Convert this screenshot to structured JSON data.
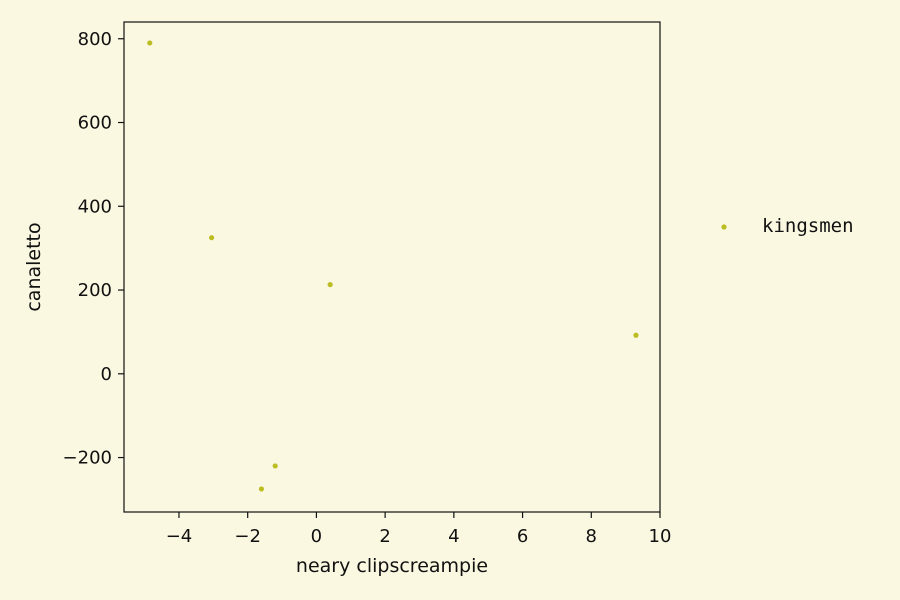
{
  "chart_data": {
    "type": "scatter",
    "title": "",
    "xlabel": "neary clipscreampie",
    "ylabel": "canaletto",
    "xlim": [
      -5.6,
      10.0
    ],
    "ylim": [
      -330,
      840
    ],
    "xticks": [
      -4,
      -2,
      0,
      2,
      4,
      6,
      8,
      10
    ],
    "xtick_labels": [
      "−4",
      "−2",
      "0",
      "2",
      "4",
      "6",
      "8",
      "10"
    ],
    "yticks": [
      -200,
      0,
      200,
      400,
      600,
      800
    ],
    "ytick_labels": [
      "−200",
      "0",
      "200",
      "400",
      "600",
      "800"
    ],
    "grid": false,
    "legend_position": "outside-right",
    "series": [
      {
        "name": "kingsmen",
        "color": "#bcbd22",
        "points": [
          {
            "x": -4.85,
            "y": 790
          },
          {
            "x": -3.05,
            "y": 325
          },
          {
            "x": 0.4,
            "y": 213
          },
          {
            "x": 9.3,
            "y": 92
          },
          {
            "x": -1.2,
            "y": -220
          },
          {
            "x": -1.6,
            "y": -275
          }
        ]
      }
    ]
  }
}
